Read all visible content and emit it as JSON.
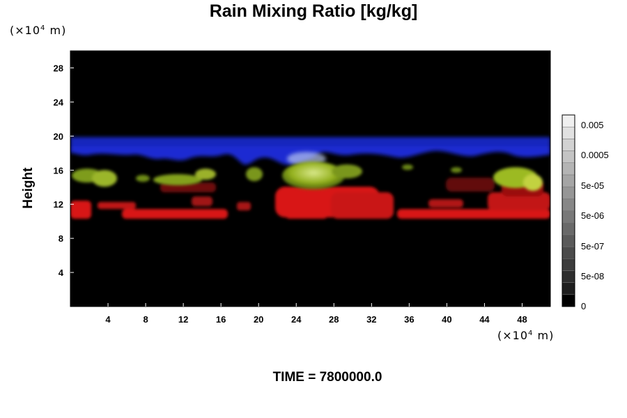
{
  "chart_data": {
    "type": "heatmap",
    "title": "Rain Mixing Ratio [kg/kg]",
    "ylabel": "Height",
    "y_unit": "×10",
    "y_unit_exp": "4",
    "y_unit_suffix": " m",
    "x_unit": "×10",
    "x_unit_exp": "4",
    "x_unit_suffix": " m",
    "x_ticks": [
      4,
      8,
      12,
      16,
      20,
      24,
      28,
      32,
      36,
      40,
      44,
      48
    ],
    "y_ticks": [
      4,
      8,
      12,
      16,
      20,
      24,
      28
    ],
    "xlim": [
      0,
      51
    ],
    "ylim": [
      0,
      30
    ],
    "colorbar": {
      "labels": [
        "0",
        "5e-08",
        "5e-07",
        "5e-06",
        "5e-05",
        "0.0005",
        "0.005"
      ],
      "levels": 16
    },
    "layers": [
      {
        "color": "#1c2bd2",
        "y_range": [
          16.5,
          19.8
        ]
      },
      {
        "color": "#8fb21a",
        "y_range": [
          13.5,
          16.5
        ]
      },
      {
        "color": "#d81616",
        "y_range": [
          10.3,
          14.0
        ]
      }
    ],
    "time_label": "TIME = 7800000.0"
  }
}
